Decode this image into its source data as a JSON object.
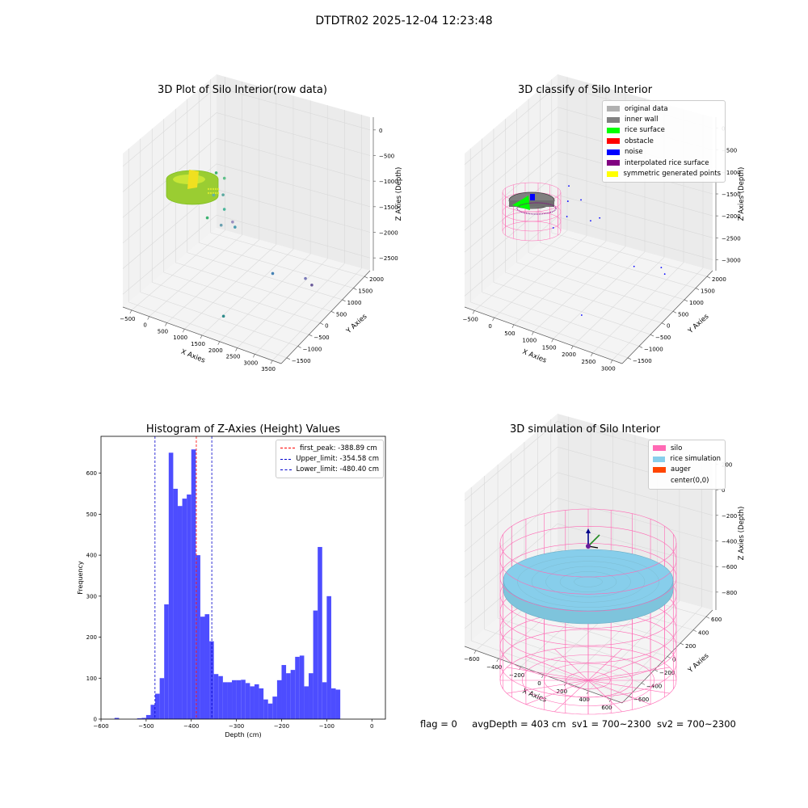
{
  "figure": {
    "suptitle": "DTDTR02 2025-12-04 12:23:48",
    "status": {
      "flag": "flag = 0",
      "avg_depth": "avgDepth = 403 cm",
      "sv1": "sv1 = 700~2300",
      "sv2": "sv2 = 700~2300"
    }
  },
  "colors": {
    "original": "#b0b0b0",
    "inner_wall": "#808080",
    "rice_surface": "#00ff00",
    "obstacle": "#ff0000",
    "noise": "#0000ff",
    "interpolated": "#800080",
    "symmetric": "#ffff00",
    "silo": "#ff69b4",
    "rice_sim": "#87ceeb",
    "auger": "#ff4500",
    "hist_bar": "#4d4dff",
    "peak_line": "#ff0000",
    "limit_line": "#0000cc"
  },
  "chart_data": [
    {
      "type": "scatter",
      "title": "3D Plot of Silo Interior(row data)",
      "xlabel": "X Axies",
      "ylabel": "Y Axies",
      "zlabel": "Z Axies (Depth)",
      "xticks": [
        "−500",
        "0",
        "500",
        "1000",
        "1500",
        "2000",
        "2500",
        "3000",
        "3500"
      ],
      "yticks": [
        "−1500",
        "−1000",
        "−500",
        "0",
        "500",
        "1000",
        "1500",
        "2000"
      ],
      "zticks": [
        "0",
        "−500",
        "−1000",
        "−1500",
        "−2000",
        "−2500"
      ],
      "xlim": [
        -600,
        3600
      ],
      "ylim": [
        -1600,
        2100
      ],
      "zlim": [
        -2700,
        100
      ],
      "points": [
        {
          "x": 600,
          "y": 300,
          "z": -700
        },
        {
          "x": 750,
          "y": 400,
          "z": -800
        },
        {
          "x": 800,
          "y": -100,
          "z": -900
        },
        {
          "x": 850,
          "y": 200,
          "z": -1000
        },
        {
          "x": 700,
          "y": -200,
          "z": -1300
        },
        {
          "x": 950,
          "y": 100,
          "z": -1200
        },
        {
          "x": 1000,
          "y": -100,
          "z": -1400
        },
        {
          "x": 900,
          "y": 500,
          "z": -1600
        },
        {
          "x": 1300,
          "y": 0,
          "z": -1400
        },
        {
          "x": 2300,
          "y": 0,
          "z": -2000
        },
        {
          "x": 2900,
          "y": 400,
          "z": -2100
        },
        {
          "x": 2800,
          "y": 800,
          "z": -2400
        },
        {
          "x": 1600,
          "y": -900,
          "z": -2600
        }
      ]
    },
    {
      "type": "scatter",
      "title": "3D classify of Silo Interior",
      "xlabel": "X Axies",
      "ylabel": "Y Axies",
      "zlabel": "Z Axies (Depth)",
      "xticks": [
        "−500",
        "0",
        "500",
        "1000",
        "1500",
        "2000",
        "2500",
        "3000"
      ],
      "yticks": [
        "−1500",
        "−1000",
        "−500",
        "0",
        "500",
        "1000",
        "1500",
        "2000"
      ],
      "zticks": [
        "0",
        "−500",
        "−1000",
        "−1500",
        "−2000",
        "−2500",
        "−3000"
      ],
      "legend": [
        "original data",
        "inner wall",
        "rice surface",
        "obstacle",
        "noise",
        "interpolated rice surface",
        "symmetric generated points"
      ],
      "legend_position": "upper right",
      "noise_points": [
        {
          "x": 800,
          "y": 300,
          "z": -1000
        },
        {
          "x": 900,
          "y": 100,
          "z": -1200
        },
        {
          "x": 1100,
          "y": 300,
          "z": -1200
        },
        {
          "x": 1000,
          "y": -100,
          "z": -1400
        },
        {
          "x": 1400,
          "y": 200,
          "z": -1500
        },
        {
          "x": 1500,
          "y": 400,
          "z": -1500
        },
        {
          "x": 600,
          "y": 0,
          "z": -1800
        },
        {
          "x": 2600,
          "y": 0,
          "z": -2000
        },
        {
          "x": 2900,
          "y": 600,
          "z": -2200
        },
        {
          "x": 2800,
          "y": 900,
          "z": -2500
        },
        {
          "x": 1800,
          "y": -800,
          "z": -2900
        }
      ]
    },
    {
      "type": "bar",
      "title": "Histogram of Z-Axies (Height) Values",
      "xlabel": "Depth (cm)",
      "ylabel": "Frequency",
      "xlim": [
        -600,
        30
      ],
      "ylim": [
        0,
        690
      ],
      "xticks": [
        -600,
        -500,
        -400,
        -300,
        -200,
        -100,
        0
      ],
      "yticks": [
        0,
        100,
        200,
        300,
        400,
        500,
        600
      ],
      "bin_width": 10,
      "bins_start": [
        -570,
        -520,
        -510,
        -500,
        -490,
        -480,
        -470,
        -460,
        -450,
        -440,
        -430,
        -420,
        -410,
        -400,
        -390,
        -380,
        -370,
        -360,
        -350,
        -340,
        -330,
        -320,
        -310,
        -300,
        -290,
        -280,
        -270,
        -260,
        -250,
        -240,
        -230,
        -220,
        -210,
        -200,
        -190,
        -180,
        -170,
        -160,
        -150,
        -140,
        -130,
        -120,
        -110,
        -100,
        -90,
        -80,
        -70,
        -60,
        -50,
        -40,
        -30,
        -20,
        -10
      ],
      "values": [
        3,
        2,
        3,
        10,
        35,
        62,
        100,
        280,
        650,
        562,
        520,
        538,
        548,
        658,
        400,
        250,
        256,
        190,
        110,
        105,
        90,
        90,
        95,
        95,
        96,
        88,
        80,
        85,
        75,
        48,
        38,
        55,
        95,
        132,
        112,
        120,
        152,
        155,
        80,
        112,
        265,
        420,
        90,
        300,
        75,
        72,
        0,
        0,
        0,
        0,
        0,
        0,
        0
      ],
      "lines": [
        {
          "label": "first_peak: -388.89 cm",
          "x": -388.89,
          "color": "red"
        },
        {
          "label": "Upper_limit: -354.58 cm",
          "x": -354.58,
          "color": "blue"
        },
        {
          "label": "Lower_limit: -480.40 cm",
          "x": -480.4,
          "color": "blue"
        }
      ],
      "legend_position": "upper right"
    },
    {
      "type": "scatter",
      "title": "3D simulation of Silo Interior",
      "xlabel": "X Axies",
      "ylabel": "Y Axies",
      "zlabel": "Z Axies (Depth)",
      "xticks": [
        "−600",
        "−400",
        "−200",
        "0",
        "200",
        "400",
        "600"
      ],
      "yticks": [
        "−600",
        "−400",
        "−200",
        "0",
        "200",
        "400",
        "600"
      ],
      "zticks": [
        "200",
        "0",
        "−200",
        "−400",
        "−600",
        "−800"
      ],
      "legend": [
        "silo",
        "rice simulation",
        "auger",
        "center(0,0)"
      ],
      "legend_position": "upper right",
      "silo_radius": 700,
      "rice_avg_depth": -403
    }
  ]
}
